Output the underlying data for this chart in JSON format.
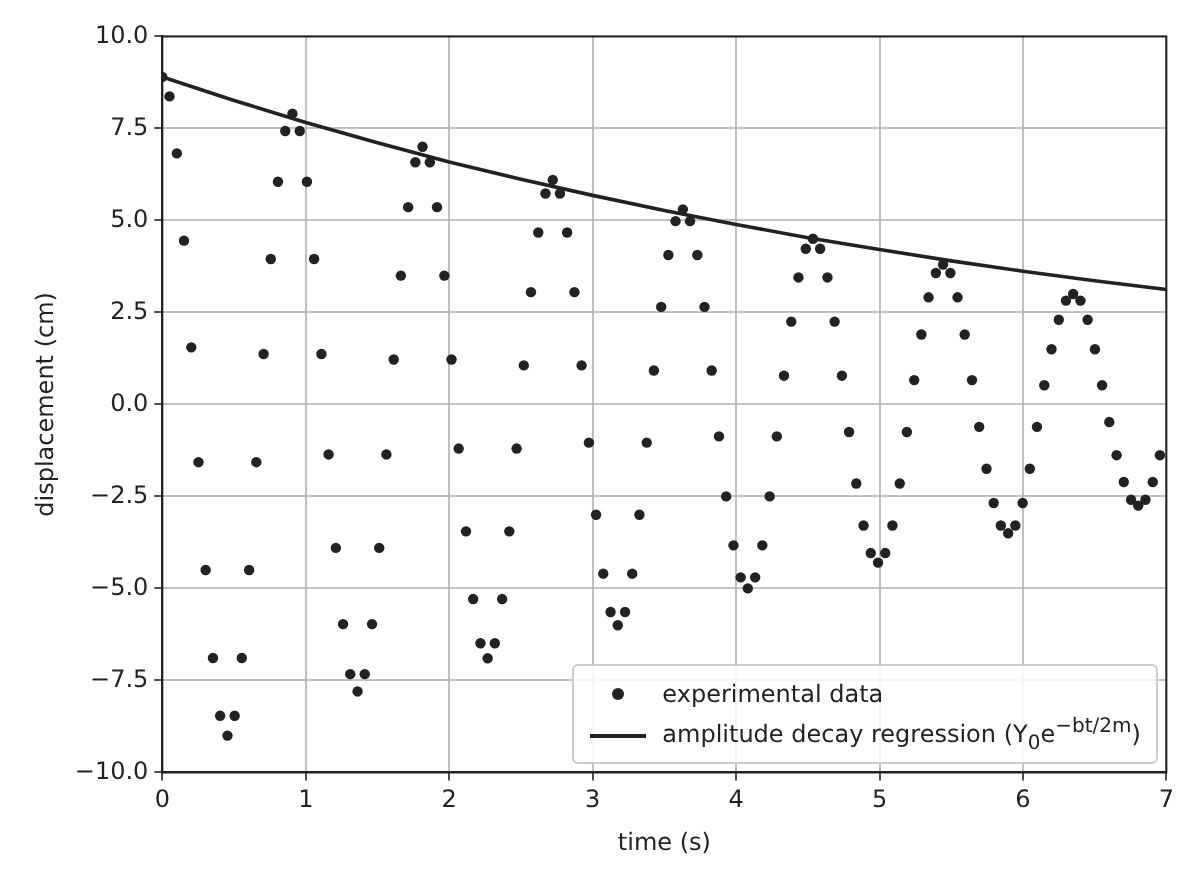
{
  "chart_data": {
    "type": "scatter",
    "xlabel": "time (s)",
    "ylabel": "displacement (cm)",
    "xlim": [
      0,
      7
    ],
    "xticks": [
      0,
      1,
      2,
      3,
      4,
      5,
      6,
      7
    ],
    "ylim": [
      -10,
      10
    ],
    "yticks": [
      {
        "value": -10,
        "label": "−10.0"
      },
      {
        "value": -7.5,
        "label": "−7.5"
      },
      {
        "value": -5,
        "label": "−5.0"
      },
      {
        "value": -2.5,
        "label": "−2.5"
      },
      {
        "value": 0,
        "label": "0.0"
      },
      {
        "value": 2.5,
        "label": "2.5"
      },
      {
        "value": 5,
        "label": "5.0"
      },
      {
        "value": 7.5,
        "label": "7.5"
      },
      {
        "value": 10,
        "label": "10.0"
      }
    ],
    "grid": true,
    "legend": "bottom right",
    "series": [
      {
        "name": "experimental data",
        "type": "scatter",
        "marker": "circle",
        "color": "#222222",
        "x": [
          0,
          0.05,
          0.101,
          0.151,
          0.202,
          0.252,
          0.302,
          0.353,
          0.403,
          0.454,
          0.504,
          0.554,
          0.605,
          0.655,
          0.706,
          0.756,
          0.806,
          0.857,
          0.907,
          0.958,
          1.008,
          1.058,
          1.109,
          1.159,
          1.21,
          1.26,
          1.31,
          1.361,
          1.411,
          1.462,
          1.512,
          1.562,
          1.613,
          1.663,
          1.714,
          1.764,
          1.814,
          1.865,
          1.915,
          1.966,
          2.016,
          2.066,
          2.117,
          2.167,
          2.218,
          2.268,
          2.318,
          2.369,
          2.419,
          2.47,
          2.52,
          2.57,
          2.621,
          2.671,
          2.722,
          2.772,
          2.822,
          2.873,
          2.923,
          2.974,
          3.024,
          3.074,
          3.125,
          3.175,
          3.226,
          3.276,
          3.326,
          3.377,
          3.427,
          3.478,
          3.528,
          3.578,
          3.629,
          3.679,
          3.73,
          3.78,
          3.83,
          3.881,
          3.931,
          3.982,
          4.032,
          4.082,
          4.133,
          4.183,
          4.234,
          4.284,
          4.334,
          4.385,
          4.435,
          4.486,
          4.536,
          4.586,
          4.637,
          4.687,
          4.738,
          4.788,
          4.838,
          4.889,
          4.939,
          4.99,
          5.04,
          5.09,
          5.141,
          5.191,
          5.242,
          5.292,
          5.342,
          5.393,
          5.443,
          5.494,
          5.544,
          5.594,
          5.645,
          5.695,
          5.746,
          5.796,
          5.846,
          5.897,
          5.947,
          5.998,
          6.048,
          6.098,
          6.149,
          6.199,
          6.25,
          6.3,
          6.35,
          6.401,
          6.451,
          6.502,
          6.552,
          6.602,
          6.653,
          6.703,
          6.754,
          6.804,
          6.854,
          6.905,
          6.955
        ],
        "values": [
          8.9,
          8.37,
          6.82,
          4.45,
          1.55,
          -1.57,
          -4.5,
          -6.89,
          -8.46,
          -9.0,
          -8.46,
          -6.89,
          -4.5,
          -1.57,
          1.37,
          3.95,
          6.05,
          7.43,
          7.9,
          7.43,
          6.05,
          3.95,
          1.37,
          -1.36,
          -3.9,
          -5.97,
          -7.33,
          -7.8,
          -7.33,
          -5.97,
          -3.9,
          -1.36,
          1.22,
          3.5,
          5.36,
          6.58,
          7.0,
          6.58,
          5.36,
          3.5,
          1.22,
          -1.2,
          -3.45,
          -5.29,
          -6.49,
          -6.9,
          -6.49,
          -5.29,
          -3.45,
          -1.2,
          1.06,
          3.05,
          4.67,
          5.73,
          6.1,
          5.73,
          4.67,
          3.05,
          1.06,
          -1.04,
          -3.0,
          -4.6,
          -5.64,
          -6.0,
          -5.64,
          -4.6,
          -3.0,
          -1.04,
          0.92,
          2.65,
          4.06,
          4.98,
          5.3,
          4.98,
          4.06,
          2.65,
          0.92,
          -0.87,
          -2.5,
          -3.83,
          -4.7,
          -5.0,
          -4.7,
          -3.83,
          -2.5,
          -0.87,
          0.78,
          2.25,
          3.45,
          4.23,
          4.5,
          4.23,
          3.45,
          2.25,
          0.78,
          -0.75,
          -2.15,
          -3.29,
          -4.04,
          -4.3,
          -4.04,
          -3.29,
          -2.15,
          -0.75,
          0.66,
          1.9,
          2.91,
          3.57,
          3.8,
          3.57,
          2.91,
          1.9,
          0.66,
          -0.61,
          -1.75,
          -2.68,
          -3.29,
          -3.5,
          -3.29,
          -2.68,
          -1.75,
          -0.61,
          0.52,
          1.5,
          2.3,
          2.82,
          3.0,
          2.82,
          2.3,
          1.5,
          0.52,
          -0.48,
          -1.38,
          -2.11,
          -2.59,
          -2.75,
          -2.59,
          -2.11,
          -1.38
        ]
      },
      {
        "name": "amplitude decay regression (Y$_{0}$e$^{−bt/2m}$)",
        "type": "line",
        "marker": "none",
        "line_style": "solid",
        "color": "#222222",
        "x": [
          0,
          0.5,
          1,
          1.5,
          2,
          2.5,
          3,
          3.5,
          4,
          4.5,
          5,
          5.5,
          6,
          6.5,
          7
        ],
        "values": [
          8.9,
          8.26,
          7.66,
          7.11,
          6.59,
          6.12,
          5.68,
          5.27,
          4.89,
          4.53,
          4.21,
          3.9,
          3.62,
          3.36,
          3.12
        ]
      }
    ]
  }
}
